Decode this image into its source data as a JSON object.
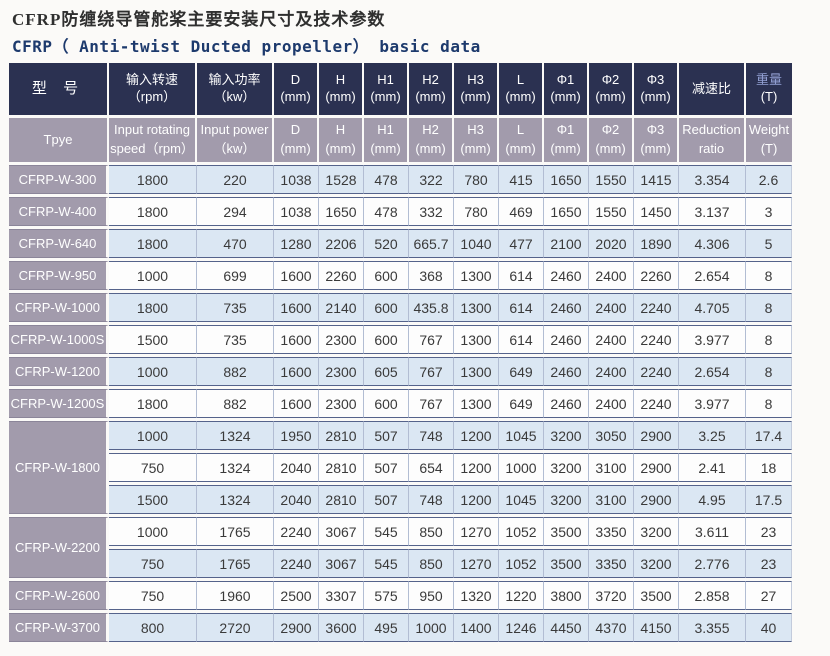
{
  "titles": {
    "cn": "CFRP防缠绕导管舵桨主要安装尺寸及技术参数",
    "en": "CFRP（ Anti-twist Ducted propeller） basic data"
  },
  "colors": {
    "header_navy": "#2b3151",
    "header_purple": "#a29bac",
    "row_blue": "#dbe7f3",
    "row_white": "#fdfdfd",
    "title_en_navy": "#1d3a6d",
    "weight_label_blue": "#93a0d4"
  },
  "model_header": {
    "cn": "型 号",
    "en": "Tpye"
  },
  "columns": [
    {
      "cn1": "输入转速",
      "cn2": "（rpm）",
      "en1": "Input rotating",
      "en2": "speed（rpm）"
    },
    {
      "cn1": "输入功率",
      "cn2": "（kw）",
      "en1": "Input power",
      "en2": "（kw）"
    },
    {
      "cn1": "D",
      "cn2": "(mm)",
      "en1": "D",
      "en2": "(mm)"
    },
    {
      "cn1": "H",
      "cn2": "(mm)",
      "en1": "H",
      "en2": "(mm)"
    },
    {
      "cn1": "H1",
      "cn2": "(mm)",
      "en1": "H1",
      "en2": "(mm)"
    },
    {
      "cn1": "H2",
      "cn2": "(mm)",
      "en1": "H2",
      "en2": "(mm)"
    },
    {
      "cn1": "H3",
      "cn2": "(mm)",
      "en1": "H3",
      "en2": "(mm)"
    },
    {
      "cn1": "L",
      "cn2": "(mm)",
      "en1": "L",
      "en2": "(mm)"
    },
    {
      "cn1": "Φ1",
      "cn2": "(mm)",
      "en1": "Φ1",
      "en2": "(mm)"
    },
    {
      "cn1": "Φ2",
      "cn2": "(mm)",
      "en1": "Φ2",
      "en2": "(mm)"
    },
    {
      "cn1": "Φ3",
      "cn2": "(mm)",
      "en1": "Φ3",
      "en2": "(mm)"
    },
    {
      "cn1": "减速比",
      "cn2": "",
      "en1": "Reduction",
      "en2": "ratio"
    },
    {
      "cn1": "重量",
      "cn2": "(T)",
      "en1": "Weight",
      "en2": "(T)",
      "weight_highlight": true
    }
  ],
  "groups": [
    {
      "model": "CFRP-W-300",
      "rows": [
        [
          1800,
          220,
          1038,
          1528,
          478,
          322,
          780,
          415,
          1650,
          1550,
          1415,
          3.354,
          2.6
        ]
      ]
    },
    {
      "model": "CFRP-W-400",
      "rows": [
        [
          1800,
          294,
          1038,
          1650,
          478,
          332,
          780,
          469,
          1650,
          1550,
          1450,
          3.137,
          3
        ]
      ]
    },
    {
      "model": "CFRP-W-640",
      "rows": [
        [
          1800,
          470,
          1280,
          2206,
          520,
          665.7,
          1040,
          477,
          2100,
          2020,
          1890,
          4.306,
          5
        ]
      ]
    },
    {
      "model": "CFRP-W-950",
      "rows": [
        [
          1000,
          699,
          1600,
          2260,
          600,
          368,
          1300,
          614,
          2460,
          2400,
          2260,
          2.654,
          8
        ]
      ]
    },
    {
      "model": "CFRP-W-1000",
      "rows": [
        [
          1800,
          735,
          1600,
          2140,
          600,
          435.8,
          1300,
          614,
          2460,
          2400,
          2240,
          4.705,
          8
        ]
      ]
    },
    {
      "model": "CFRP-W-1000S",
      "rows": [
        [
          1500,
          735,
          1600,
          2300,
          600,
          767,
          1300,
          614,
          2460,
          2400,
          2240,
          3.977,
          8
        ]
      ]
    },
    {
      "model": "CFRP-W-1200",
      "rows": [
        [
          1000,
          882,
          1600,
          2300,
          605,
          767,
          1300,
          649,
          2460,
          2400,
          2240,
          2.654,
          8
        ]
      ]
    },
    {
      "model": "CFRP-W-1200S",
      "rows": [
        [
          1800,
          882,
          1600,
          2300,
          600,
          767,
          1300,
          649,
          2460,
          2400,
          2240,
          3.977,
          8
        ]
      ]
    },
    {
      "model": "CFRP-W-1800",
      "rows": [
        [
          1000,
          1324,
          1950,
          2810,
          507,
          748,
          1200,
          1045,
          3200,
          3050,
          2900,
          3.25,
          17.4
        ],
        [
          750,
          1324,
          2040,
          2810,
          507,
          654,
          1200,
          1000,
          3200,
          3100,
          2900,
          2.41,
          18
        ],
        [
          1500,
          1324,
          2040,
          2810,
          507,
          748,
          1200,
          1045,
          3200,
          3100,
          2900,
          4.95,
          17.5
        ]
      ]
    },
    {
      "model": "CFRP-W-2200",
      "rows": [
        [
          1000,
          1765,
          2240,
          3067,
          545,
          850,
          1270,
          1052,
          3500,
          3350,
          3200,
          3.611,
          23
        ],
        [
          750,
          1765,
          2240,
          3067,
          545,
          850,
          1270,
          1052,
          3500,
          3350,
          3200,
          2.776,
          23
        ]
      ]
    },
    {
      "model": "CFRP-W-2600",
      "rows": [
        [
          750,
          1960,
          2500,
          3307,
          575,
          950,
          1320,
          1220,
          3800,
          3720,
          3500,
          2.858,
          27
        ]
      ]
    },
    {
      "model": "CFRP-W-3700",
      "rows": [
        [
          800,
          2720,
          2900,
          3600,
          495,
          1000,
          1400,
          1246,
          4450,
          4370,
          4150,
          3.355,
          40
        ]
      ]
    }
  ]
}
